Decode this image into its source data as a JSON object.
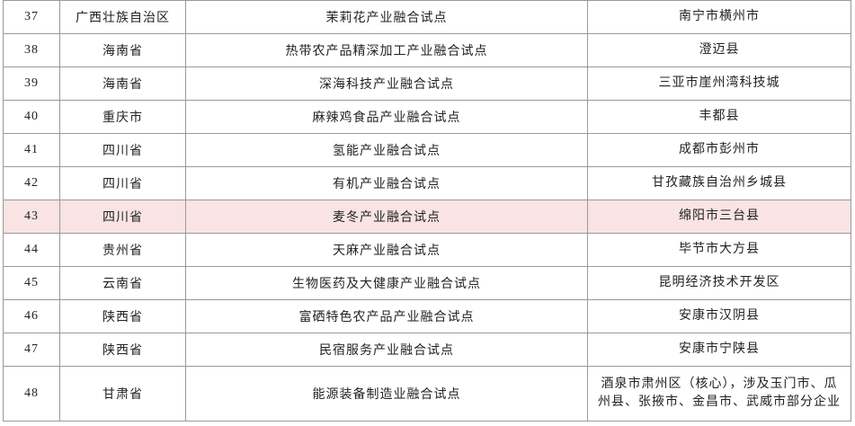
{
  "table": {
    "rows": [
      [
        "37",
        "广西壮族自治区",
        "茉莉花产业融合试点",
        "南宁市横州市"
      ],
      [
        "38",
        "海南省",
        "热带农产品精深加工产业融合试点",
        "澄迈县"
      ],
      [
        "39",
        "海南省",
        "深海科技产业融合试点",
        "三亚市崖州湾科技城"
      ],
      [
        "40",
        "重庆市",
        "麻辣鸡食品产业融合试点",
        "丰都县"
      ],
      [
        "41",
        "四川省",
        "氢能产业融合试点",
        "成都市彭州市"
      ],
      [
        "42",
        "四川省",
        "有机产业融合试点",
        "甘孜藏族自治州乡城县"
      ],
      [
        "43",
        "四川省",
        "麦冬产业融合试点",
        "绵阳市三台县"
      ],
      [
        "44",
        "贵州省",
        "天麻产业融合试点",
        "毕节市大方县"
      ],
      [
        "45",
        "云南省",
        "生物医药及大健康产业融合试点",
        "昆明经济技术开发区"
      ],
      [
        "46",
        "陕西省",
        "富硒特色农产品产业融合试点",
        "安康市汉阴县"
      ],
      [
        "47",
        "陕西省",
        "民宿服务产业融合试点",
        "安康市宁陕县"
      ],
      [
        "48",
        "甘肃省",
        "能源装备制造业融合试点",
        "酒泉市肃州区（核心），涉及玉门市、瓜州县、张掖市、金昌市、武威市部分企业"
      ]
    ]
  }
}
